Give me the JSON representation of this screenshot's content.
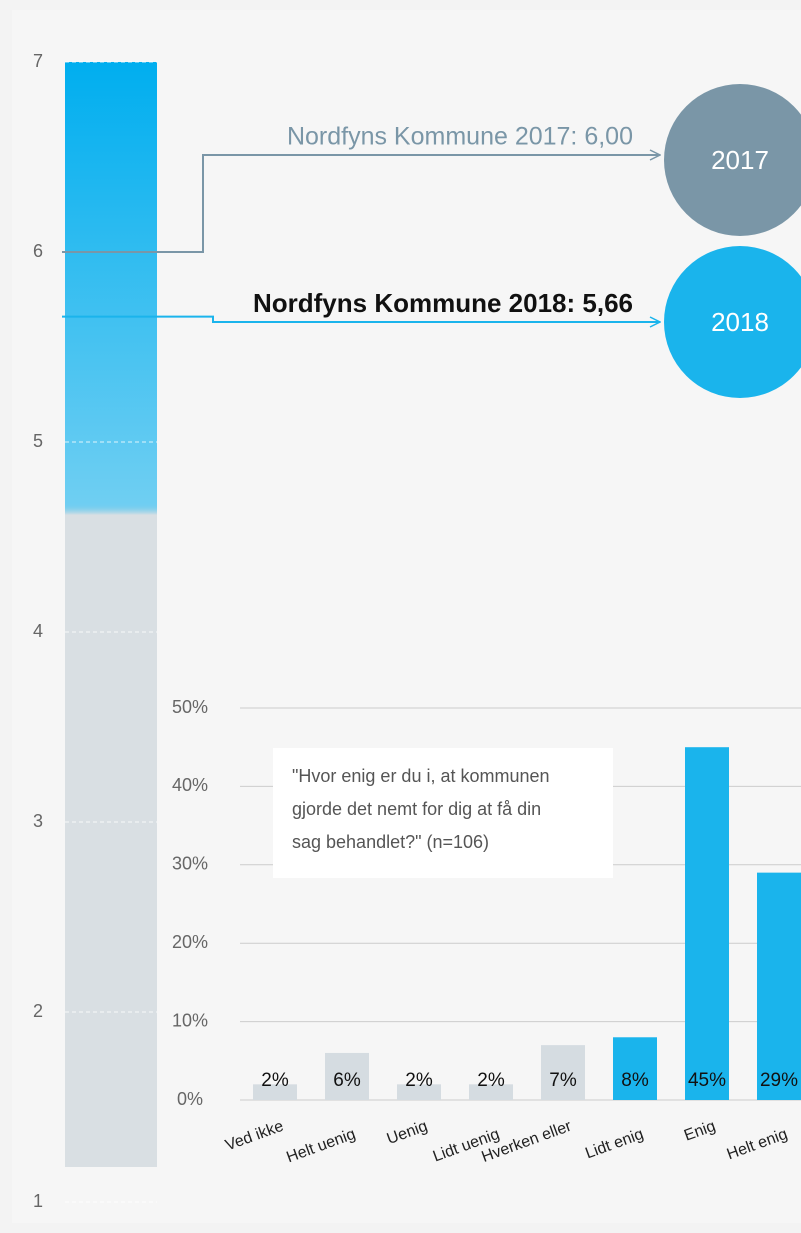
{
  "chart_data": [
    {
      "type": "gauge",
      "ylim": [
        1,
        7
      ],
      "yticks": [
        1,
        2,
        3,
        4,
        5,
        6,
        7
      ],
      "color": "#00aeef",
      "base_color": "#d9dfe3",
      "markers": [
        {
          "label": "Nordfyns Kommune 2017: 6,00",
          "value": 6.0,
          "badge": "2017",
          "color": "#7a96a7"
        },
        {
          "label": "Nordfyns Kommune 2018: 5,66",
          "value": 5.66,
          "badge": "2018",
          "color": "#1ab4ec"
        }
      ]
    },
    {
      "type": "bar",
      "annotation": [
        "\"Hvor enig er du i, at kommunen",
        "gjorde det nemt for dig at få din",
        "sag behandlet?\" (n=106)"
      ],
      "categories": [
        "Ved ikke",
        "Helt uenig",
        "Uenig",
        "Lidt uenig",
        "Hverken eller",
        "Lidt enig",
        "Enig",
        "Helt enig"
      ],
      "values": [
        2,
        6,
        2,
        2,
        7,
        8,
        45,
        29
      ],
      "value_labels": [
        "2%",
        "6%",
        "2%",
        "2%",
        "7%",
        "8%",
        "45%",
        "29%"
      ],
      "colors": [
        "#d5dce1",
        "#d5dce1",
        "#d5dce1",
        "#d5dce1",
        "#d5dce1",
        "#1ab4ec",
        "#1ab4ec",
        "#1ab4ec"
      ],
      "ylim": [
        0,
        50
      ],
      "yticks": [
        {
          "value": 0,
          "label": "0%"
        },
        {
          "value": 10,
          "label": "10%"
        },
        {
          "value": 20,
          "label": "20%"
        },
        {
          "value": 30,
          "label": "30%"
        },
        {
          "value": 40,
          "label": "40%"
        },
        {
          "value": 50,
          "label": "50%"
        }
      ],
      "grid": true
    }
  ]
}
